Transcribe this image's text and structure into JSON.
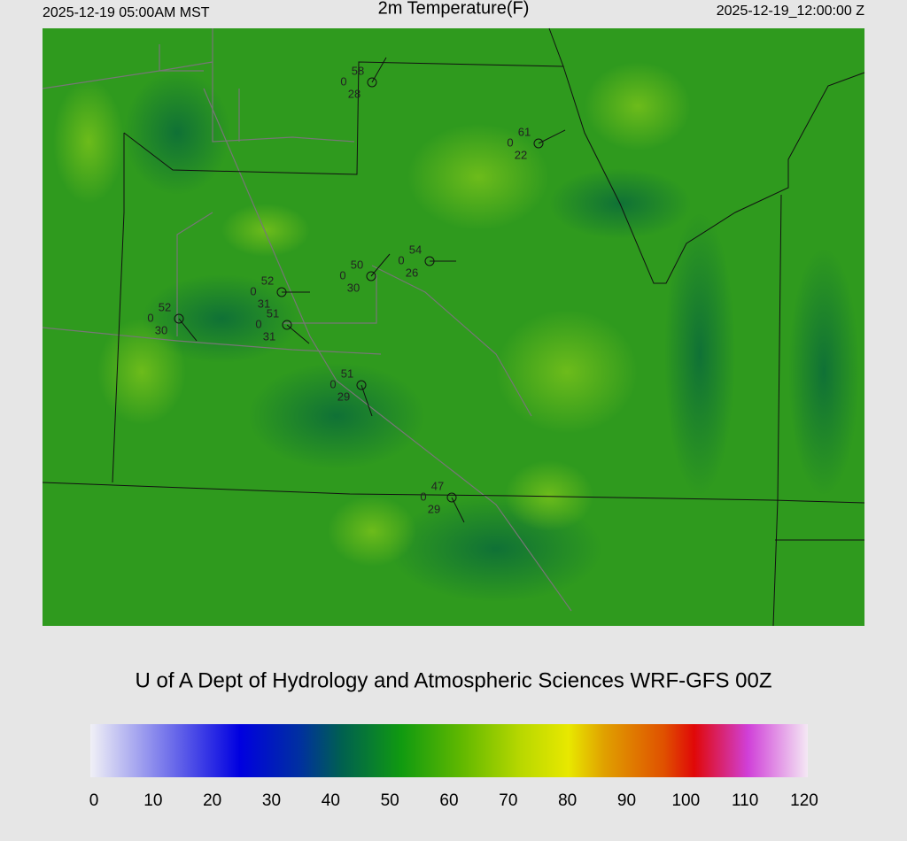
{
  "header": {
    "left": "2025-12-19 05:00AM MST",
    "title": "2m Temperature(F)",
    "right": "2025-12-19_12:00:00 Z"
  },
  "stations": [
    {
      "temp": 58,
      "cloud": 0,
      "dewpoint": 28
    },
    {
      "temp": 61,
      "cloud": 0,
      "dewpoint": 22
    },
    {
      "temp": 54,
      "cloud": 0,
      "dewpoint": 26
    },
    {
      "temp": 50,
      "cloud": 0,
      "dewpoint": 30
    },
    {
      "temp": 52,
      "cloud": 0,
      "dewpoint": 31
    },
    {
      "temp": 52,
      "cloud": 0,
      "dewpoint": 30
    },
    {
      "temp": 51,
      "cloud": 0,
      "dewpoint": 31
    },
    {
      "temp": 51,
      "cloud": 0,
      "dewpoint": 29
    },
    {
      "temp": 47,
      "cloud": 0,
      "dewpoint": 29
    }
  ],
  "footer": "U of A Dept of Hydrology and Atmospheric Sciences WRF-GFS 00Z",
  "colorbar": {
    "lim": [
      0,
      120
    ],
    "ticks": [
      0,
      10,
      20,
      30,
      40,
      50,
      60,
      70,
      80,
      90,
      100,
      110,
      120
    ],
    "stops": [
      {
        "value": 0,
        "color": "#f0f0f6"
      },
      {
        "value": 25,
        "color": "#0000e0"
      },
      {
        "value": 35,
        "color": "#0030a0"
      },
      {
        "value": 42,
        "color": "#006050"
      },
      {
        "value": 52,
        "color": "#109a10"
      },
      {
        "value": 62,
        "color": "#60b800"
      },
      {
        "value": 72,
        "color": "#b8d800"
      },
      {
        "value": 80,
        "color": "#e8e800"
      },
      {
        "value": 86,
        "color": "#e0a000"
      },
      {
        "value": 96,
        "color": "#e05000"
      },
      {
        "value": 101,
        "color": "#e00808"
      },
      {
        "value": 110,
        "color": "#d040d8"
      },
      {
        "value": 120,
        "color": "#f4e8f4"
      }
    ]
  }
}
